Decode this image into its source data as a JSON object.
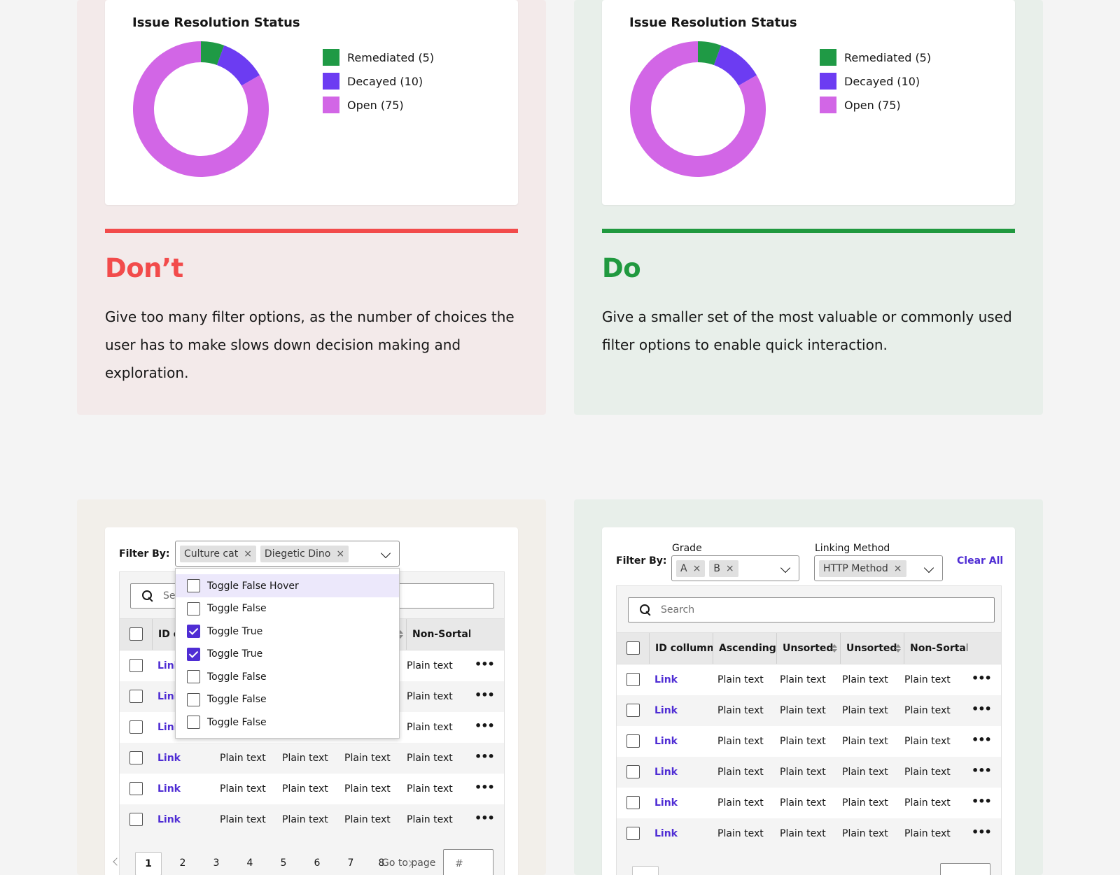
{
  "colors": {
    "remediated": "#1f9a45",
    "decayed": "#6c3cf2",
    "open": "#d266e6",
    "dont": "#f24b4b",
    "do": "#20993f",
    "link": "#4f2dd4"
  },
  "top_left": {
    "title": "Issue Resolution Status",
    "legend": [
      "Remediated (5)",
      "Decayed (10)",
      "Open (75)"
    ],
    "heading": "Don’t",
    "body_lines": [
      "Give too many filter options, as the number of choices the",
      "user has to make slows down decision making and",
      "exploration."
    ]
  },
  "top_right": {
    "title": "Issue Resolution Status",
    "legend": [
      "Remediated (5)",
      "Decayed (10)",
      "Open (75)"
    ],
    "heading": "Do",
    "body_lines": [
      "Give a smaller set of the most valuable or commonly used",
      "filter options to enable quick interaction."
    ]
  },
  "chart_data": [
    {
      "type": "pie",
      "title": "Issue Resolution Status",
      "categories": [
        "Remediated",
        "Decayed",
        "Open"
      ],
      "values": [
        5,
        10,
        75
      ],
      "legend": "right"
    },
    {
      "type": "pie",
      "title": "Issue Resolution Status",
      "categories": [
        "Remediated",
        "Decayed",
        "Open"
      ],
      "values": [
        5,
        10,
        75
      ],
      "legend": "right"
    }
  ],
  "bottom_left": {
    "filter_label": "Filter By:",
    "tags": [
      "Culture cat",
      "Diegetic Dino"
    ],
    "tag_close": "×",
    "search_placeholder": "Se",
    "headers": [
      "ID c",
      "Non-Sortabl"
    ],
    "options": [
      {
        "label": "Toggle False Hover",
        "checked": false
      },
      {
        "label": "Toggle False",
        "checked": false
      },
      {
        "label": "Toggle True",
        "checked": true
      },
      {
        "label": "Toggle True",
        "checked": true
      },
      {
        "label": "Toggle False",
        "checked": false
      },
      {
        "label": "Toggle False",
        "checked": false
      },
      {
        "label": "Toggle False",
        "checked": false
      }
    ],
    "link_partial": "Link",
    "link": "Link",
    "plain": "Plain text",
    "more": "•••",
    "pages": [
      "1",
      "2",
      "3",
      "4",
      "5",
      "6",
      "7",
      "8"
    ],
    "go_to_page": "Go to page",
    "page_input_placeholder": "#"
  },
  "bottom_right": {
    "filter_label": "Filter By:",
    "grade_label": "Grade",
    "grade_tags": [
      "A",
      "B"
    ],
    "linking_label": "Linking Method",
    "linking_tags": [
      "HTTP Method"
    ],
    "tag_close": "×",
    "clear_all": "Clear All",
    "search_placeholder": "Search",
    "headers": [
      "ID collumn",
      "Ascending S",
      "Unsorted",
      "Unsorted",
      "Non-Sortabl"
    ],
    "link": "Link",
    "plain": "Plain text",
    "more": "•••"
  }
}
